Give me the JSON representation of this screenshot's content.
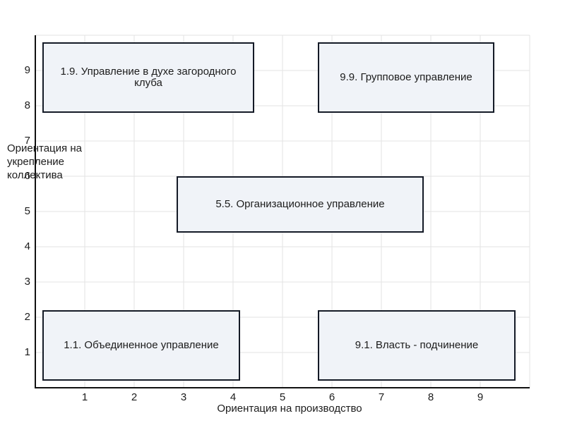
{
  "chart_data": {
    "type": "grid",
    "xlabel": "Ориентация на производство",
    "ylabel": "Ориентация на укрепление коллектива",
    "x_ticks": [
      "1",
      "2",
      "3",
      "4",
      "5",
      "6",
      "7",
      "8",
      "9"
    ],
    "y_ticks": [
      "1",
      "2",
      "3",
      "4",
      "5",
      "6",
      "7",
      "8",
      "9"
    ],
    "xlim": [
      0,
      10
    ],
    "ylim": [
      0,
      10
    ],
    "grid": true,
    "boxes": [
      {
        "label": "1.9. Управление в духе загородного клуба",
        "x": 1,
        "y": 9
      },
      {
        "label": "9.9. Групповое управление",
        "x": 9,
        "y": 9
      },
      {
        "label": "5.5. Организационное управление",
        "x": 5,
        "y": 5
      },
      {
        "label": "1.1. Объединенное управление",
        "x": 1,
        "y": 1
      },
      {
        "label": "9.1. Власть - подчинение",
        "x": 9,
        "y": 1
      }
    ]
  }
}
